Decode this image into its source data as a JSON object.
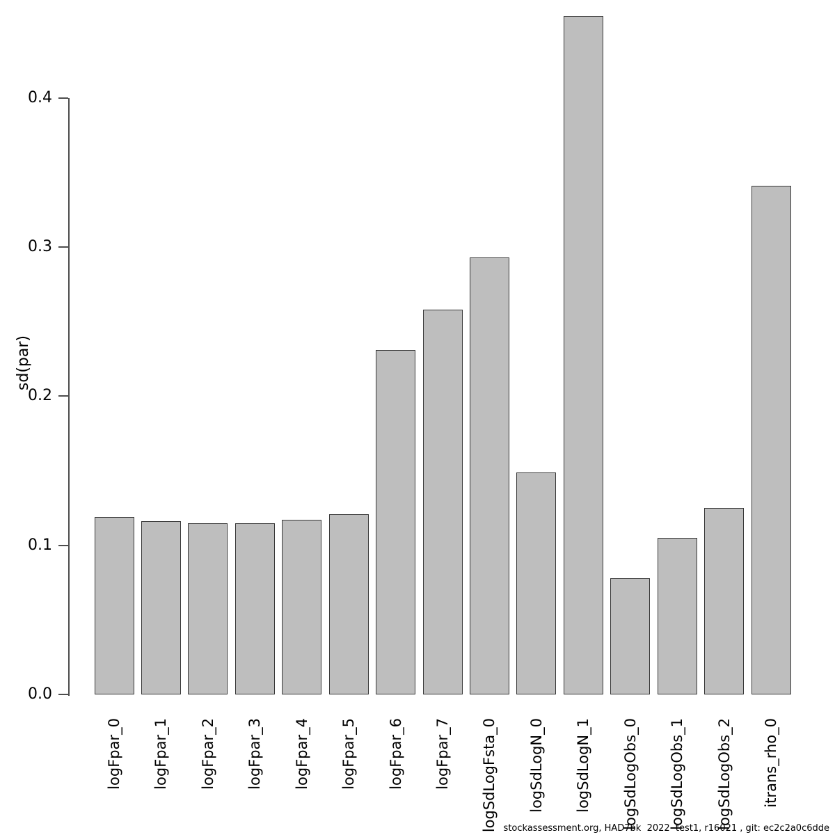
{
  "chart_data": {
    "type": "bar",
    "title": "",
    "xlabel": "",
    "ylabel": "sd(par)",
    "categories": [
      "logFpar_0",
      "logFpar_1",
      "logFpar_2",
      "logFpar_3",
      "logFpar_4",
      "logFpar_5",
      "logFpar_6",
      "logFpar_7",
      "logSdLogFsta_0",
      "logSdLogN_0",
      "logSdLogN_1",
      "logSdLogObs_0",
      "logSdLogObs_1",
      "logSdLogObs_2",
      "itrans_rho_0"
    ],
    "values": [
      0.119,
      0.116,
      0.115,
      0.115,
      0.117,
      0.121,
      0.231,
      0.258,
      0.293,
      0.149,
      0.455,
      0.078,
      0.105,
      0.125,
      0.341
    ],
    "yticks": [
      0.0,
      0.1,
      0.2,
      0.3,
      0.4
    ],
    "ytick_labels": [
      "0.0",
      "0.1",
      "0.2",
      "0.3",
      "0.4"
    ],
    "ylim": [
      0,
      0.455
    ],
    "grid": false,
    "legend": null,
    "bar_fill_color": "#bebebe",
    "bar_border_color": "#383838",
    "axis_color": "#4d4d4d"
  },
  "footer": {
    "text": "stockassessment.org, HAD7bk  2022  test1, r16021 , git: ec2c2a0c6dde"
  }
}
